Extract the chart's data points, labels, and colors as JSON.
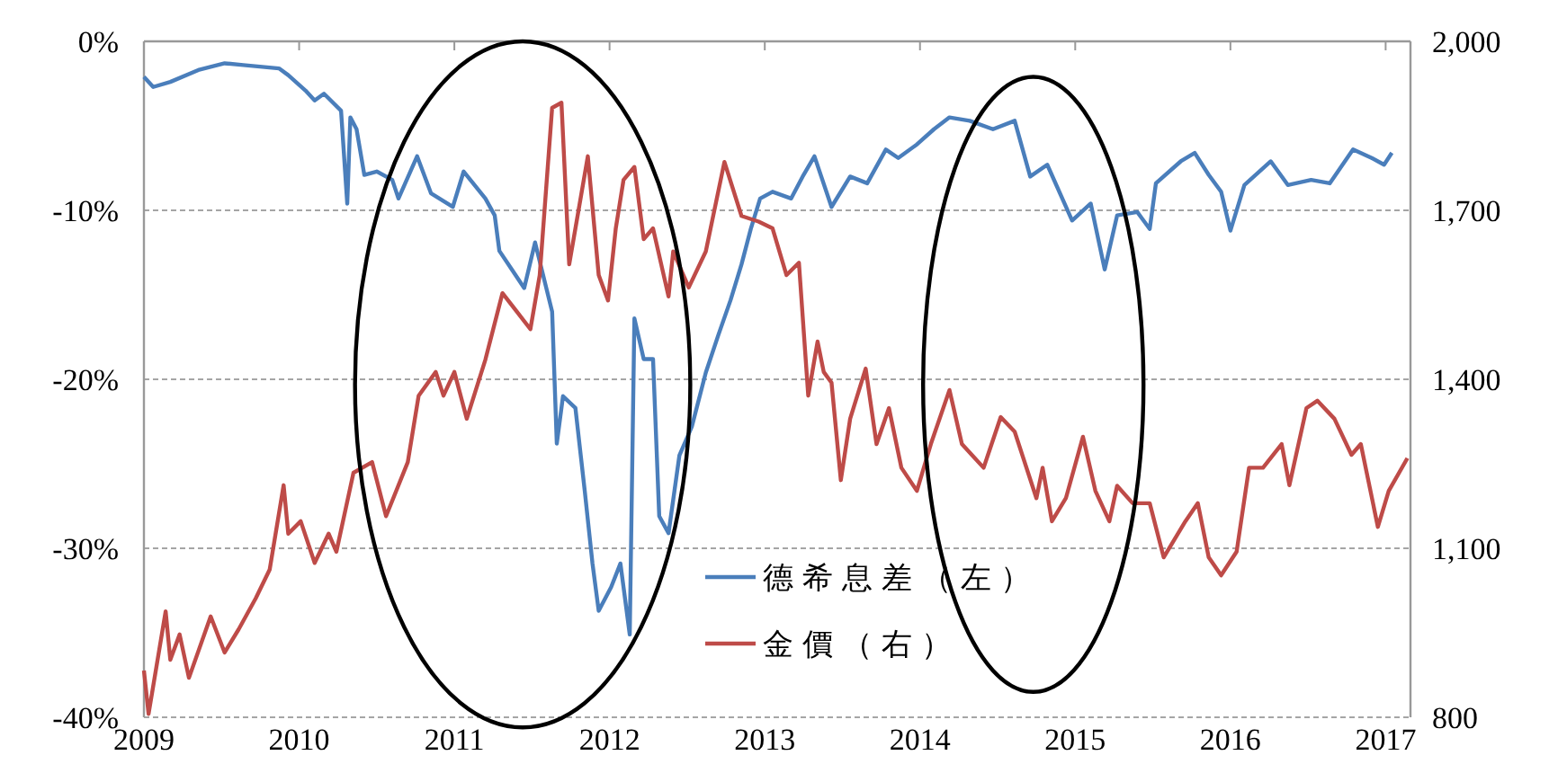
{
  "chart_data": {
    "type": "line",
    "xlim": [
      2009,
      2017.16
    ],
    "xticks": [
      2009,
      2010,
      2011,
      2012,
      2013,
      2014,
      2015,
      2016,
      2017
    ],
    "ylim": [
      -40,
      0
    ],
    "yticks": [
      {
        "value": 0,
        "label": "0%"
      },
      {
        "value": -10,
        "label": "-10%"
      },
      {
        "value": -20,
        "label": "-20%"
      },
      {
        "value": -30,
        "label": "-30%"
      },
      {
        "value": -40,
        "label": "-40%"
      }
    ],
    "y2lim": [
      800,
      2000
    ],
    "y2ticks": [
      {
        "value": 800,
        "label": "800"
      },
      {
        "value": 1100,
        "label": "1,100"
      },
      {
        "value": 1400,
        "label": "1,400"
      },
      {
        "value": 1700,
        "label": "1,700"
      },
      {
        "value": 2000,
        "label": "2,000"
      }
    ],
    "grid": "y",
    "legend": "bottom",
    "line_style": "solid",
    "series": [
      {
        "name": "德希息差（左）",
        "color": "#4a7ebb",
        "x": [
          2009.0,
          2009.06,
          2009.17,
          2009.35,
          2009.52,
          2009.64,
          2009.87,
          2009.93,
          2010.04,
          2010.1,
          2010.16,
          2010.27,
          2010.31,
          2010.33,
          2010.37,
          2010.42,
          2010.5,
          2010.6,
          2010.64,
          2010.76,
          2010.85,
          2010.99,
          2011.06,
          2011.2,
          2011.26,
          2011.29,
          2011.37,
          2011.45,
          2011.52,
          2011.63,
          2011.66,
          2011.7,
          2011.78,
          2011.84,
          2011.89,
          2011.93,
          2012.01,
          2012.07,
          2012.13,
          2012.16,
          2012.22,
          2012.28,
          2012.32,
          2012.38,
          2012.45,
          2012.53,
          2012.62,
          2012.7,
          2012.78,
          2012.85,
          2012.91,
          2012.97,
          2013.05,
          2013.17,
          2013.25,
          2013.32,
          2013.43,
          2013.55,
          2013.66,
          2013.78,
          2013.86,
          2013.98,
          2014.09,
          2014.19,
          2014.32,
          2014.47,
          2014.61,
          2014.71,
          2014.82,
          2014.98,
          2015.1,
          2015.19,
          2015.27,
          2015.4,
          2015.48,
          2015.52,
          2015.68,
          2015.77,
          2015.86,
          2015.94,
          2016.0,
          2016.09,
          2016.26,
          2016.37,
          2016.52,
          2016.64,
          2016.79,
          2016.91,
          2016.99,
          2017.04
        ],
        "values": [
          -2.1,
          -2.7,
          -2.4,
          -1.7,
          -1.3,
          -1.4,
          -1.6,
          -2.0,
          -2.9,
          -3.5,
          -3.1,
          -4.1,
          -9.6,
          -4.5,
          -5.2,
          -7.9,
          -7.7,
          -8.2,
          -9.3,
          -6.8,
          -9.0,
          -9.8,
          -7.7,
          -9.3,
          -10.3,
          -12.4,
          -13.5,
          -14.6,
          -11.9,
          -16.0,
          -23.8,
          -21.0,
          -21.7,
          -26.6,
          -30.9,
          -33.7,
          -32.3,
          -30.9,
          -35.1,
          -16.4,
          -18.8,
          -18.8,
          -28.1,
          -29.1,
          -24.5,
          -22.8,
          -19.6,
          -17.4,
          -15.3,
          -13.2,
          -11.1,
          -9.3,
          -8.9,
          -9.3,
          -7.9,
          -6.8,
          -9.8,
          -8.0,
          -8.4,
          -6.4,
          -6.9,
          -6.1,
          -5.2,
          -4.5,
          -4.7,
          -5.2,
          -4.7,
          -8.0,
          -7.3,
          -10.6,
          -9.6,
          -13.5,
          -10.3,
          -10.1,
          -11.1,
          -8.4,
          -7.1,
          -6.6,
          -7.9,
          -8.9,
          -11.2,
          -8.5,
          -7.1,
          -8.5,
          -8.2,
          -8.4,
          -6.4,
          -6.9,
          -7.3,
          -6.6
        ]
      },
      {
        "name": "金價（右）",
        "color": "#be4b48",
        "axis": "y2",
        "x": [
          2009.0,
          2009.03,
          2009.14,
          2009.17,
          2009.23,
          2009.29,
          2009.43,
          2009.52,
          2009.61,
          2009.72,
          2009.81,
          2009.9,
          2009.93,
          2010.01,
          2010.1,
          2010.19,
          2010.24,
          2010.35,
          2010.47,
          2010.56,
          2010.7,
          2010.77,
          2010.88,
          2010.93,
          2011.0,
          2011.08,
          2011.2,
          2011.31,
          2011.4,
          2011.49,
          2011.55,
          2011.63,
          2011.69,
          2011.74,
          2011.78,
          2011.86,
          2011.93,
          2011.99,
          2012.04,
          2012.09,
          2012.16,
          2012.22,
          2012.28,
          2012.38,
          2012.41,
          2012.51,
          2012.62,
          2012.74,
          2012.85,
          2012.96,
          2013.05,
          2013.14,
          2013.22,
          2013.28,
          2013.34,
          2013.38,
          2013.43,
          2013.49,
          2013.55,
          2013.65,
          2013.72,
          2013.8,
          2013.88,
          2013.98,
          2014.07,
          2014.19,
          2014.27,
          2014.41,
          2014.52,
          2014.61,
          2014.75,
          2014.79,
          2014.85,
          2014.94,
          2015.05,
          2015.13,
          2015.22,
          2015.27,
          2015.37,
          2015.48,
          2015.57,
          2015.71,
          2015.79,
          2015.86,
          2015.94,
          2016.04,
          2016.12,
          2016.21,
          2016.33,
          2016.38,
          2016.49,
          2016.56,
          2016.67,
          2016.78,
          2016.84,
          2016.95,
          2017.02,
          2017.14
        ],
        "values": [
          883,
          806,
          988,
          902,
          947,
          870,
          979,
          915,
          956,
          1011,
          1062,
          1212,
          1126,
          1148,
          1074,
          1126,
          1094,
          1234,
          1253,
          1157,
          1253,
          1371,
          1413,
          1371,
          1413,
          1330,
          1435,
          1553,
          1521,
          1489,
          1585,
          1882,
          1891,
          1604,
          1668,
          1796,
          1585,
          1540,
          1668,
          1754,
          1777,
          1649,
          1668,
          1547,
          1627,
          1563,
          1627,
          1786,
          1690,
          1680,
          1668,
          1585,
          1607,
          1371,
          1467,
          1413,
          1394,
          1221,
          1330,
          1419,
          1285,
          1349,
          1243,
          1202,
          1285,
          1381,
          1285,
          1243,
          1333,
          1307,
          1189,
          1243,
          1148,
          1189,
          1298,
          1202,
          1148,
          1211,
          1180,
          1180,
          1084,
          1148,
          1180,
          1084,
          1052,
          1094,
          1243,
          1243,
          1285,
          1212,
          1349,
          1362,
          1330,
          1266,
          1285,
          1138,
          1202,
          1260
        ]
      }
    ]
  }
}
